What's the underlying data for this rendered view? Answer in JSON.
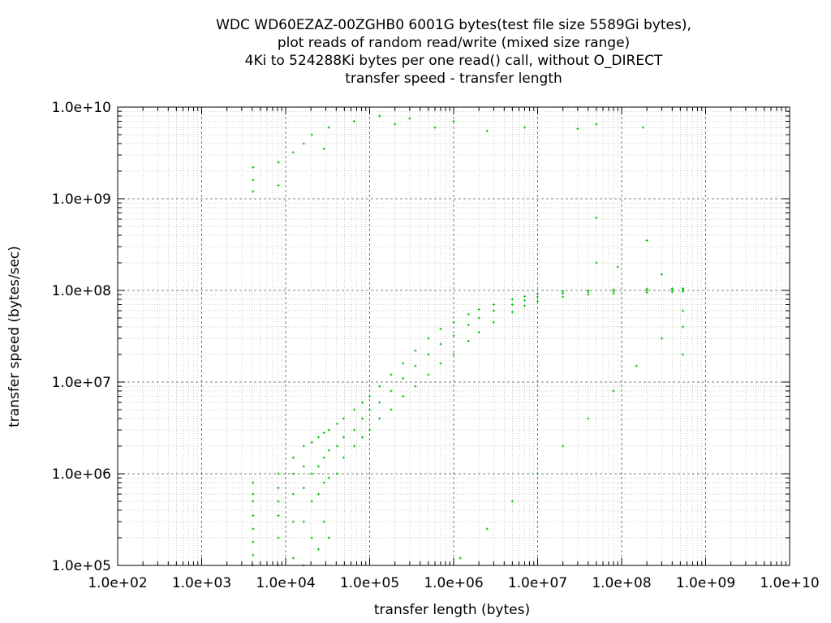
{
  "chart_data": {
    "type": "scatter",
    "title": [
      "WDC WD60EZAZ-00ZGHB0 6001G bytes(test file size 5589Gi bytes),",
      "plot reads of random read/write (mixed size range)",
      "4Ki to 524288Ki bytes per one read() call, without O_DIRECT",
      "transfer speed - transfer length"
    ],
    "xlabel": "transfer length (bytes)",
    "ylabel": "transfer speed (bytes/sec)",
    "x_scale": "log",
    "y_scale": "log",
    "xlim": [
      100,
      10000000000
    ],
    "ylim": [
      100000,
      10000000000
    ],
    "x_ticks": [
      "1.0e+02",
      "1.0e+03",
      "1.0e+04",
      "1.0e+05",
      "1.0e+06",
      "1.0e+07",
      "1.0e+08",
      "1.0e+09",
      "1.0e+10"
    ],
    "y_ticks": [
      "1.0e+10",
      "1.0e+09",
      "1.0e+08",
      "1.0e+07",
      "1.0e+06",
      "1.0e+05"
    ],
    "grid": true,
    "point_color": "#00bb00",
    "series": [
      {
        "points": [
          [
            4096,
            100000.0
          ],
          [
            4096,
            130000.0
          ],
          [
            4096,
            180000.0
          ],
          [
            4096,
            250000.0
          ],
          [
            4096,
            350000.0
          ],
          [
            4096,
            500000.0
          ],
          [
            4096,
            600000.0
          ],
          [
            4096,
            800000.0
          ],
          [
            8192,
            100000.0
          ],
          [
            8192,
            200000.0
          ],
          [
            8192,
            350000.0
          ],
          [
            8192,
            500000.0
          ],
          [
            8192,
            700000.0
          ],
          [
            8192,
            1000000.0
          ],
          [
            12288,
            120000.0
          ],
          [
            12288,
            300000.0
          ],
          [
            12288,
            600000.0
          ],
          [
            12288,
            1000000.0
          ],
          [
            12288,
            1500000.0
          ],
          [
            16384,
            100000.0
          ],
          [
            16384,
            300000.0
          ],
          [
            16384,
            700000.0
          ],
          [
            16384,
            1200000.0
          ],
          [
            16384,
            2000000.0
          ],
          [
            20480,
            200000.0
          ],
          [
            20480,
            500000.0
          ],
          [
            20480,
            1000000.0
          ],
          [
            20480,
            2200000.0
          ],
          [
            24576,
            150000.0
          ],
          [
            24576,
            600000.0
          ],
          [
            24576,
            1200000.0
          ],
          [
            24576,
            2500000.0
          ],
          [
            28672,
            300000.0
          ],
          [
            28672,
            800000.0
          ],
          [
            28672,
            1500000.0
          ],
          [
            28672,
            2800000.0
          ],
          [
            32768,
            200000.0
          ],
          [
            32768,
            900000.0
          ],
          [
            32768,
            1800000.0
          ],
          [
            32768,
            3000000.0
          ],
          [
            40960,
            1000000.0
          ],
          [
            40960,
            2000000.0
          ],
          [
            40960,
            3500000.0
          ],
          [
            49152,
            1500000.0
          ],
          [
            49152,
            2500000.0
          ],
          [
            49152,
            4000000.0
          ],
          [
            65536,
            2000000.0
          ],
          [
            65536,
            3000000.0
          ],
          [
            65536,
            5000000.0
          ],
          [
            81920,
            2500000.0
          ],
          [
            81920,
            4000000.0
          ],
          [
            81920,
            6000000.0
          ],
          [
            100000,
            3000000.0
          ],
          [
            100000,
            5000000.0
          ],
          [
            100000,
            7000000.0
          ],
          [
            131072,
            4000000.0
          ],
          [
            131072,
            6000000.0
          ],
          [
            131072,
            9000000.0
          ],
          [
            180000,
            5000000.0
          ],
          [
            180000,
            8000000.0
          ],
          [
            180000,
            12000000.0
          ],
          [
            250000,
            7000000.0
          ],
          [
            250000,
            11000000.0
          ],
          [
            250000,
            16000000.0
          ],
          [
            350000,
            9000000.0
          ],
          [
            350000,
            15000000.0
          ],
          [
            350000,
            22000000.0
          ],
          [
            500000,
            12000000.0
          ],
          [
            500000,
            20000000.0
          ],
          [
            500000,
            30000000.0
          ],
          [
            700000,
            16000000.0
          ],
          [
            700000,
            26000000.0
          ],
          [
            700000,
            38000000.0
          ],
          [
            1000000,
            20000000.0
          ],
          [
            1000000,
            32000000.0
          ],
          [
            1000000,
            45000000.0
          ],
          [
            1500000,
            28000000.0
          ],
          [
            1500000,
            42000000.0
          ],
          [
            1500000,
            55000000.0
          ],
          [
            2000000,
            35000000.0
          ],
          [
            2000000,
            50000000.0
          ],
          [
            2000000,
            62000000.0
          ],
          [
            3000000,
            45000000.0
          ],
          [
            3000000,
            60000000.0
          ],
          [
            3000000,
            70000000.0
          ],
          [
            5000000,
            58000000.0
          ],
          [
            5000000,
            70000000.0
          ],
          [
            5000000,
            80000000.0
          ],
          [
            7000000,
            68000000.0
          ],
          [
            7000000,
            78000000.0
          ],
          [
            7000000,
            86000000.0
          ],
          [
            10000000,
            76000000.0
          ],
          [
            10000000,
            85000000.0
          ],
          [
            10000000,
            92000000.0
          ],
          [
            20000000,
            85000000.0
          ],
          [
            20000000,
            93000000.0
          ],
          [
            20000000,
            98000000.0
          ],
          [
            40000000,
            90000000.0
          ],
          [
            40000000,
            96000000.0
          ],
          [
            40000000,
            100000000.0
          ],
          [
            80000000,
            93000000.0
          ],
          [
            80000000,
            98000000.0
          ],
          [
            80000000,
            102000000.0
          ],
          [
            200000000,
            95000000.0
          ],
          [
            200000000,
            100000000.0
          ],
          [
            200000000,
            104000000.0
          ],
          [
            400000000,
            96000000.0
          ],
          [
            400000000,
            101000000.0
          ],
          [
            400000000,
            105000000.0
          ],
          [
            536870912,
            97000000.0
          ],
          [
            536870912,
            102000000.0
          ],
          [
            536870912,
            105000000.0
          ],
          [
            536870912,
            40000000.0
          ],
          [
            536870912,
            60000000.0
          ],
          [
            536870912,
            20000000.0
          ],
          [
            300000000,
            30000000.0
          ],
          [
            150000000,
            15000000.0
          ],
          [
            80000000,
            8000000.0
          ],
          [
            40000000,
            4000000.0
          ],
          [
            20000000,
            2000000.0
          ],
          [
            10000000,
            1000000.0
          ],
          [
            5000000,
            500000.0
          ],
          [
            2500000,
            250000.0
          ],
          [
            1200000,
            120000.0
          ],
          [
            4096,
            1200000000.0
          ],
          [
            4096,
            2200000000.0
          ],
          [
            4096,
            1600000000.0
          ],
          [
            8192,
            1400000000.0
          ],
          [
            8192,
            2500000000.0
          ],
          [
            12288,
            3200000000.0
          ],
          [
            16384,
            4000000000.0
          ],
          [
            20480,
            5000000000.0
          ],
          [
            28672,
            3500000000.0
          ],
          [
            32768,
            6000000000.0
          ],
          [
            65536,
            7000000000.0
          ],
          [
            131072,
            8000000000.0
          ],
          [
            200000,
            6500000000.0
          ],
          [
            300000,
            7500000000.0
          ],
          [
            600000,
            6000000000.0
          ],
          [
            1000000,
            7000000000.0
          ],
          [
            2500000,
            5500000000.0
          ],
          [
            7000000,
            6000000000.0
          ],
          [
            30000000,
            5800000000.0
          ],
          [
            50000000,
            6500000000.0
          ],
          [
            180000000,
            6000000000.0
          ],
          [
            50000000,
            620000000.0
          ],
          [
            200000000,
            350000000.0
          ],
          [
            50000000,
            200000000.0
          ],
          [
            90000000,
            180000000.0
          ],
          [
            300000000,
            150000000.0
          ]
        ]
      }
    ]
  }
}
